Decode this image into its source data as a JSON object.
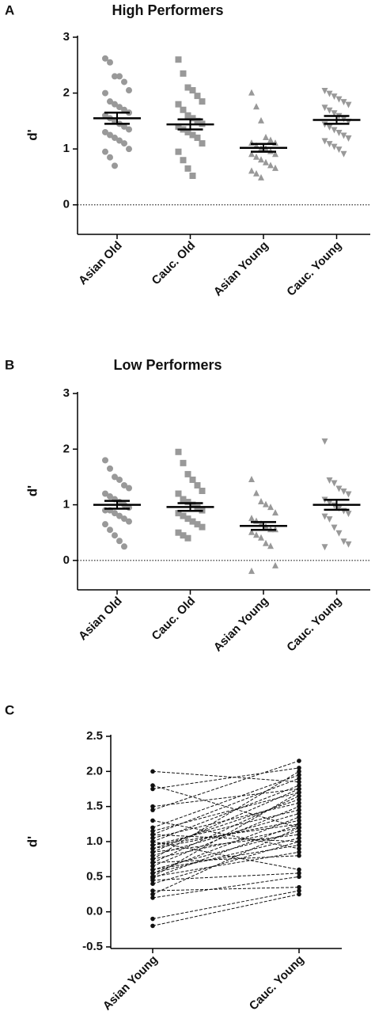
{
  "chart_data": [
    {
      "type": "dotplot",
      "panel": "A",
      "title": "High Performers",
      "ylabel": "d'",
      "ylim": [
        -0.5,
        3
      ],
      "yticks": [
        0,
        1,
        2,
        3
      ],
      "zero_line": true,
      "color": "#999999",
      "series": [
        {
          "name": "Asian Old",
          "marker": "circle",
          "mean": 1.55,
          "sem": 0.1,
          "values": [
            2.62,
            2.55,
            2.3,
            2.3,
            2.2,
            2.05,
            2.0,
            1.85,
            1.8,
            1.75,
            1.7,
            1.65,
            1.6,
            1.55,
            1.5,
            1.45,
            1.4,
            1.35,
            1.3,
            1.25,
            1.2,
            1.15,
            1.1,
            1.0,
            0.95,
            0.85,
            0.7
          ]
        },
        {
          "name": "Cauc. Old",
          "marker": "square",
          "mean": 1.44,
          "sem": 0.09,
          "values": [
            2.6,
            2.35,
            2.1,
            2.05,
            1.95,
            1.85,
            1.8,
            1.7,
            1.6,
            1.55,
            1.5,
            1.45,
            1.4,
            1.35,
            1.3,
            1.25,
            1.2,
            1.1,
            0.95,
            0.8,
            0.65,
            0.52
          ]
        },
        {
          "name": "Asian Young",
          "marker": "triangle-up",
          "mean": 1.02,
          "sem": 0.07,
          "values": [
            2.0,
            1.75,
            1.5,
            1.2,
            1.15,
            1.1,
            1.1,
            1.05,
            1.0,
            1.0,
            0.95,
            0.9,
            0.9,
            0.85,
            0.8,
            0.75,
            0.7,
            0.65,
            0.6,
            0.55,
            0.48
          ]
        },
        {
          "name": "Cauc. Young",
          "marker": "triangle-down",
          "mean": 1.52,
          "sem": 0.07,
          "values": [
            2.05,
            2.0,
            1.95,
            1.9,
            1.85,
            1.8,
            1.75,
            1.7,
            1.65,
            1.6,
            1.55,
            1.5,
            1.45,
            1.4,
            1.35,
            1.3,
            1.25,
            1.2,
            1.15,
            1.1,
            1.05,
            1.0,
            0.92
          ]
        }
      ]
    },
    {
      "type": "dotplot",
      "panel": "B",
      "title": "Low Performers",
      "ylabel": "d'",
      "ylim": [
        -0.5,
        3
      ],
      "yticks": [
        0,
        1,
        2,
        3
      ],
      "zero_line": true,
      "color": "#999999",
      "series": [
        {
          "name": "Asian Old",
          "marker": "circle",
          "mean": 1.0,
          "sem": 0.07,
          "values": [
            1.8,
            1.65,
            1.5,
            1.45,
            1.35,
            1.3,
            1.2,
            1.15,
            1.1,
            1.05,
            1.0,
            0.95,
            0.9,
            0.9,
            0.85,
            0.8,
            0.75,
            0.7,
            0.65,
            0.55,
            0.45,
            0.35,
            0.25
          ]
        },
        {
          "name": "Cauc. Old",
          "marker": "square",
          "mean": 0.96,
          "sem": 0.07,
          "values": [
            1.95,
            1.75,
            1.55,
            1.45,
            1.35,
            1.25,
            1.2,
            1.1,
            1.05,
            1.0,
            0.95,
            0.9,
            0.85,
            0.8,
            0.75,
            0.7,
            0.65,
            0.6,
            0.5,
            0.45,
            0.4
          ]
        },
        {
          "name": "Asian Young",
          "marker": "triangle-up",
          "mean": 0.62,
          "sem": 0.07,
          "values": [
            1.45,
            1.2,
            1.05,
            1.0,
            0.95,
            0.85,
            0.75,
            0.7,
            0.65,
            0.6,
            0.55,
            0.55,
            0.5,
            0.45,
            0.4,
            0.3,
            0.25,
            -0.1,
            -0.2
          ]
        },
        {
          "name": "Cauc. Young",
          "marker": "triangle-down",
          "mean": 1.0,
          "sem": 0.09,
          "values": [
            2.15,
            1.45,
            1.4,
            1.3,
            1.25,
            1.2,
            1.1,
            1.05,
            1.0,
            0.95,
            0.9,
            0.85,
            0.8,
            0.75,
            0.6,
            0.5,
            0.35,
            0.3,
            0.25
          ]
        }
      ]
    },
    {
      "type": "paired",
      "panel": "C",
      "ylabel": "d'",
      "ylim": [
        -0.5,
        2.5
      ],
      "yticks": [
        -0.5,
        {
          "value": 0,
          "label": "0.0"
        },
        0.5,
        {
          "value": 1,
          "label": "1.0"
        },
        1.5,
        {
          "value": 2,
          "label": "2.0"
        },
        2.5
      ],
      "categories": [
        "Asian Young",
        "Cauc. Young"
      ],
      "color": "#111111",
      "pairs": [
        [
          2.0,
          1.85
        ],
        [
          1.8,
          1.2
        ],
        [
          1.75,
          2.05
        ],
        [
          1.5,
          1.75
        ],
        [
          1.45,
          2.15
        ],
        [
          1.3,
          0.9
        ],
        [
          1.2,
          1.95
        ],
        [
          1.15,
          1.7
        ],
        [
          1.1,
          1.9
        ],
        [
          1.1,
          1.0
        ],
        [
          1.05,
          1.55
        ],
        [
          1.0,
          1.8
        ],
        [
          1.0,
          0.6
        ],
        [
          0.95,
          1.25
        ],
        [
          0.95,
          1.45
        ],
        [
          0.9,
          1.6
        ],
        [
          0.9,
          1.3
        ],
        [
          0.85,
          1.75
        ],
        [
          0.85,
          1.1
        ],
        [
          0.8,
          1.4
        ],
        [
          0.75,
          2.0
        ],
        [
          0.75,
          1.2
        ],
        [
          0.7,
          1.65
        ],
        [
          0.7,
          0.8
        ],
        [
          0.65,
          1.5
        ],
        [
          0.6,
          1.15
        ],
        [
          0.6,
          0.95
        ],
        [
          0.55,
          1.35
        ],
        [
          0.55,
          1.05
        ],
        [
          0.5,
          0.85
        ],
        [
          0.5,
          1.7
        ],
        [
          0.48,
          1.25
        ],
        [
          0.45,
          0.55
        ],
        [
          0.4,
          1.0
        ],
        [
          0.3,
          0.35
        ],
        [
          0.25,
          1.2
        ],
        [
          0.2,
          0.5
        ],
        [
          -0.1,
          0.3
        ],
        [
          -0.2,
          0.25
        ]
      ]
    }
  ]
}
